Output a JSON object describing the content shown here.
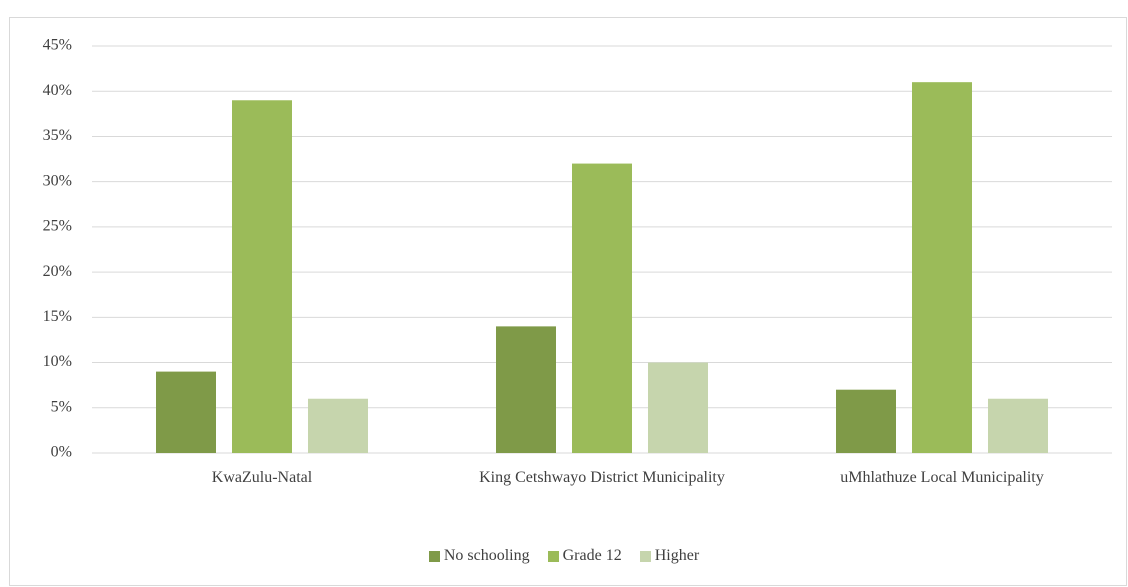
{
  "chart_data": {
    "type": "bar",
    "categories": [
      "KwaZulu-Natal",
      "King Cetshwayo District Municipality",
      "uMhlathuze Local Municipality"
    ],
    "series": [
      {
        "name": "No schooling",
        "color": "#7f9a48",
        "values": [
          9,
          14,
          7
        ]
      },
      {
        "name": "Grade 12",
        "color": "#9bbb59",
        "values": [
          39,
          32,
          41
        ]
      },
      {
        "name": "Higher",
        "color": "#c6d5ad",
        "values": [
          6,
          10,
          6
        ]
      }
    ],
    "ylim": [
      0,
      45
    ],
    "yticks": [
      {
        "value": 0,
        "label": "0%"
      },
      {
        "value": 5,
        "label": "5%"
      },
      {
        "value": 10,
        "label": "10%"
      },
      {
        "value": 15,
        "label": "15%"
      },
      {
        "value": 20,
        "label": "20%"
      },
      {
        "value": 25,
        "label": "25%"
      },
      {
        "value": 30,
        "label": "30%"
      },
      {
        "value": 35,
        "label": "35%"
      },
      {
        "value": 40,
        "label": "40%"
      },
      {
        "value": 45,
        "label": "45%"
      }
    ],
    "grid": true,
    "legend": "bottom"
  }
}
